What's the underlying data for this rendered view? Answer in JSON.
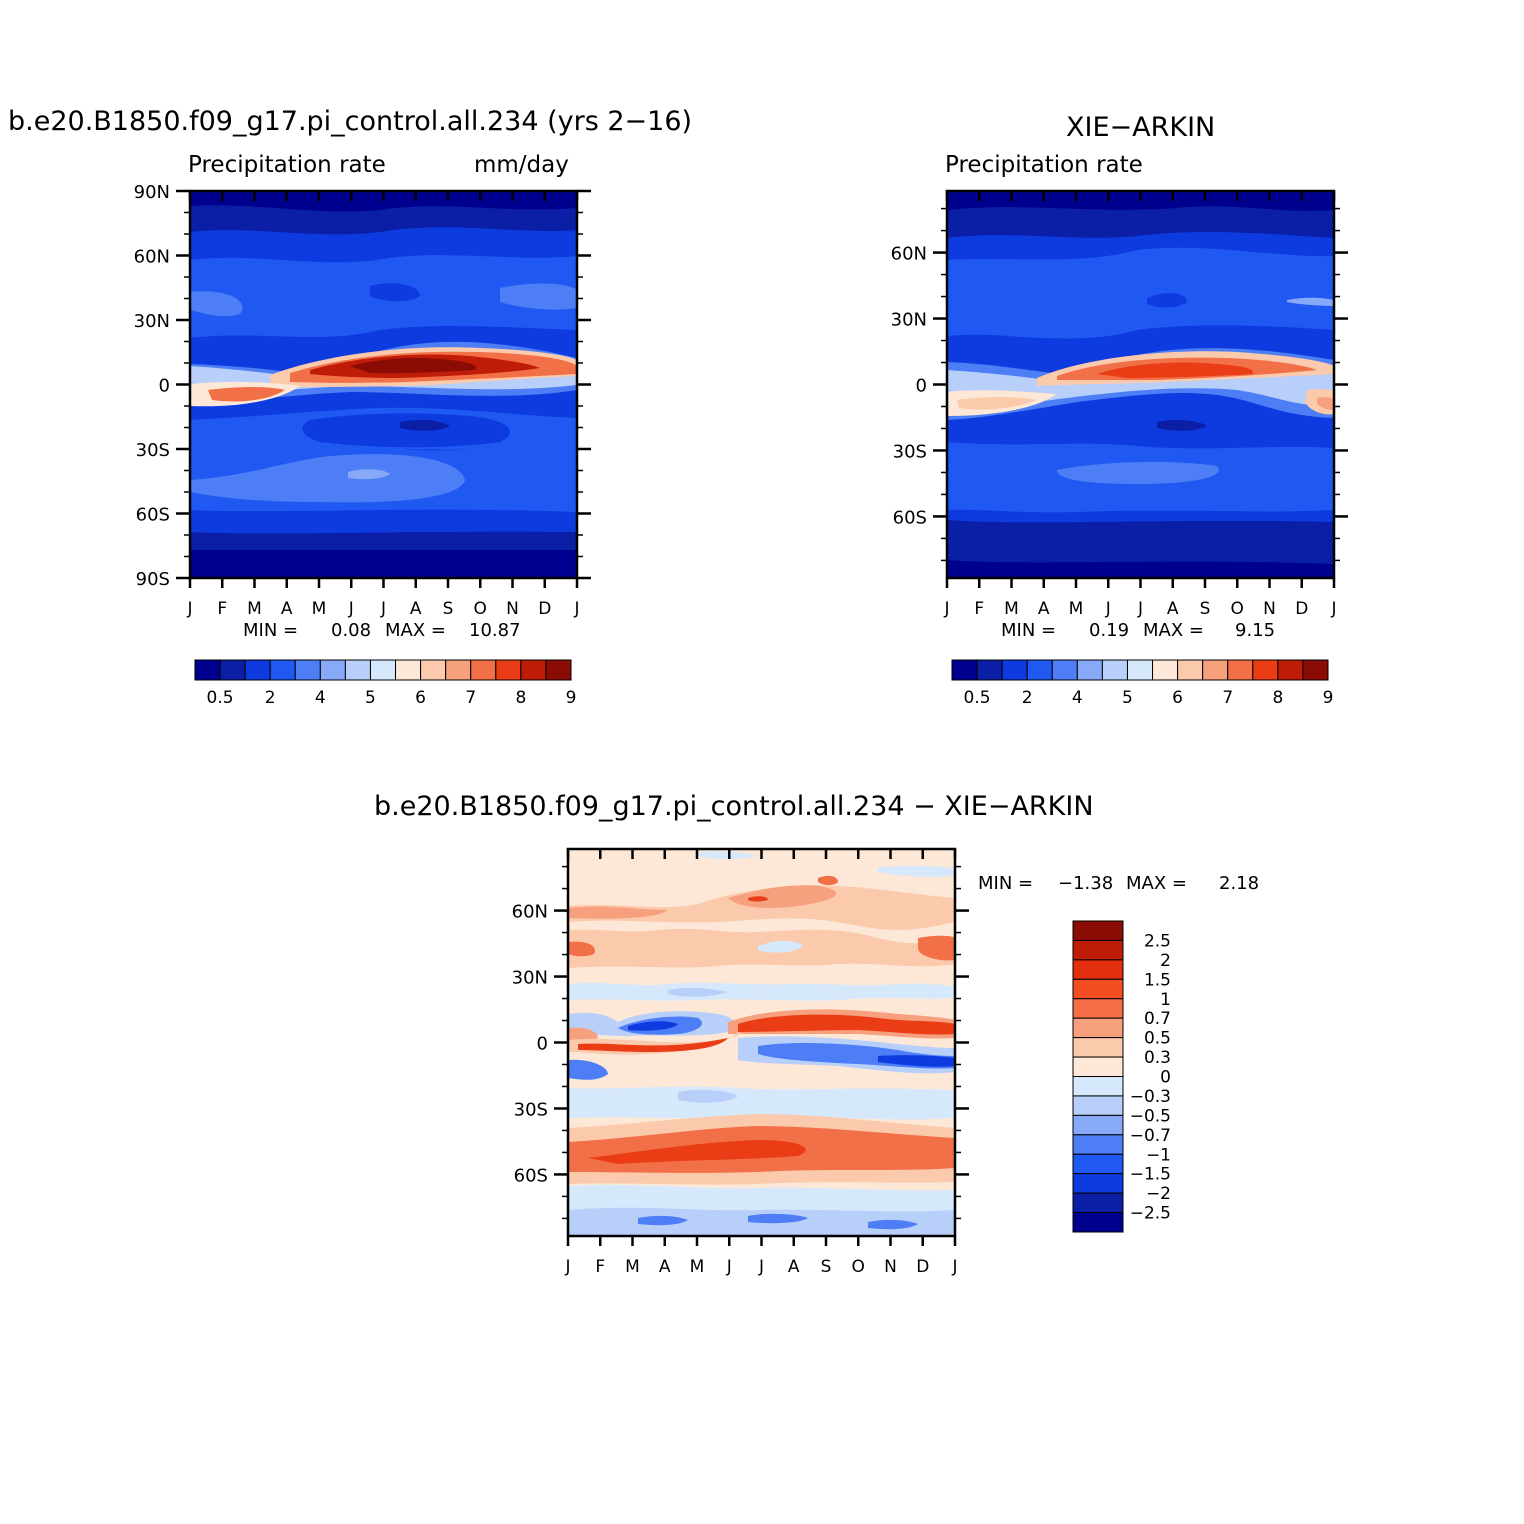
{
  "chart_data": [
    {
      "type": "heatmap",
      "title": "b.e20.B1850.f09_g17.pi_control.all.234 (yrs 2-16)",
      "subtitle_left": "Precipitation rate",
      "subtitle_right": "mm/day",
      "x_tick_labels": [
        "J",
        "F",
        "M",
        "A",
        "M",
        "J",
        "J",
        "A",
        "S",
        "O",
        "N",
        "D",
        "J"
      ],
      "y_tick_labels": [
        "90N",
        "60N",
        "30N",
        "0",
        "30S",
        "60S",
        "90S"
      ],
      "y_tick_values": [
        90,
        60,
        30,
        0,
        -30,
        -60,
        -90
      ],
      "ylim": [
        -90,
        90
      ],
      "stats": {
        "min_label": "MIN =",
        "min": "0.08",
        "max_label": "MAX =",
        "max": "10.87"
      },
      "colorbar": {
        "colors": [
          "#00008f",
          "#0a1fa6",
          "#0d3be0",
          "#2058f2",
          "#4d7ef5",
          "#87a9f7",
          "#b8cffa",
          "#d6e8fb",
          "#fde8d7",
          "#fbc9ab",
          "#f7a07d",
          "#f27048",
          "#ea3c15",
          "#c01d08",
          "#8a0c05"
        ],
        "labels": [
          "0.5",
          "2",
          "4",
          "5",
          "6",
          "7",
          "8",
          "9"
        ]
      }
    },
    {
      "type": "heatmap",
      "title": "XIE-ARKIN",
      "subtitle_left": "Precipitation rate",
      "x_tick_labels": [
        "J",
        "F",
        "M",
        "A",
        "M",
        "J",
        "J",
        "A",
        "S",
        "O",
        "N",
        "D",
        "J"
      ],
      "y_tick_labels": [
        "60N",
        "30N",
        "0",
        "30S",
        "60S"
      ],
      "y_tick_values": [
        60,
        30,
        0,
        -30,
        -60
      ],
      "ylim": [
        -88,
        88
      ],
      "stats": {
        "min_label": "MIN =",
        "min": "0.19",
        "max_label": "MAX =",
        "max": "9.15"
      },
      "colorbar": {
        "colors": [
          "#00008f",
          "#0a1fa6",
          "#0d3be0",
          "#2058f2",
          "#4d7ef5",
          "#87a9f7",
          "#b8cffa",
          "#d6e8fb",
          "#fde8d7",
          "#fbc9ab",
          "#f7a07d",
          "#f27048",
          "#ea3c15",
          "#c01d08",
          "#8a0c05"
        ],
        "labels": [
          "0.5",
          "2",
          "4",
          "5",
          "6",
          "7",
          "8",
          "9"
        ]
      }
    },
    {
      "type": "heatmap",
      "title": "b.e20.B1850.f09_g17.pi_control.all.234 - XIE-ARKIN",
      "x_tick_labels": [
        "J",
        "F",
        "M",
        "A",
        "M",
        "J",
        "J",
        "A",
        "S",
        "O",
        "N",
        "D",
        "J"
      ],
      "y_tick_labels": [
        "60N",
        "30N",
        "0",
        "30S",
        "60S"
      ],
      "y_tick_values": [
        60,
        30,
        0,
        -30,
        -60
      ],
      "ylim": [
        -88,
        88
      ],
      "stats": {
        "min_label": "MIN =",
        "min": "-1.38",
        "max_label": "MAX =",
        "max": "2.18"
      },
      "colorbar": {
        "colors": [
          "#8a0c05",
          "#c01d08",
          "#e2300f",
          "#f24e22",
          "#f46f45",
          "#f7a07d",
          "#fbc9ab",
          "#fde8d7",
          "#d6e8fb",
          "#b8cffa",
          "#87a9f7",
          "#4d7ef5",
          "#2058f2",
          "#0d3be0",
          "#0a1fa6",
          "#00008f"
        ],
        "labels": [
          "2.5",
          "2",
          "1.5",
          "1",
          "0.7",
          "0.5",
          "0.3",
          "0",
          "-0.3",
          "-0.5",
          "-0.7",
          "-1",
          "-1.5",
          "-2",
          "-2.5"
        ]
      }
    }
  ]
}
